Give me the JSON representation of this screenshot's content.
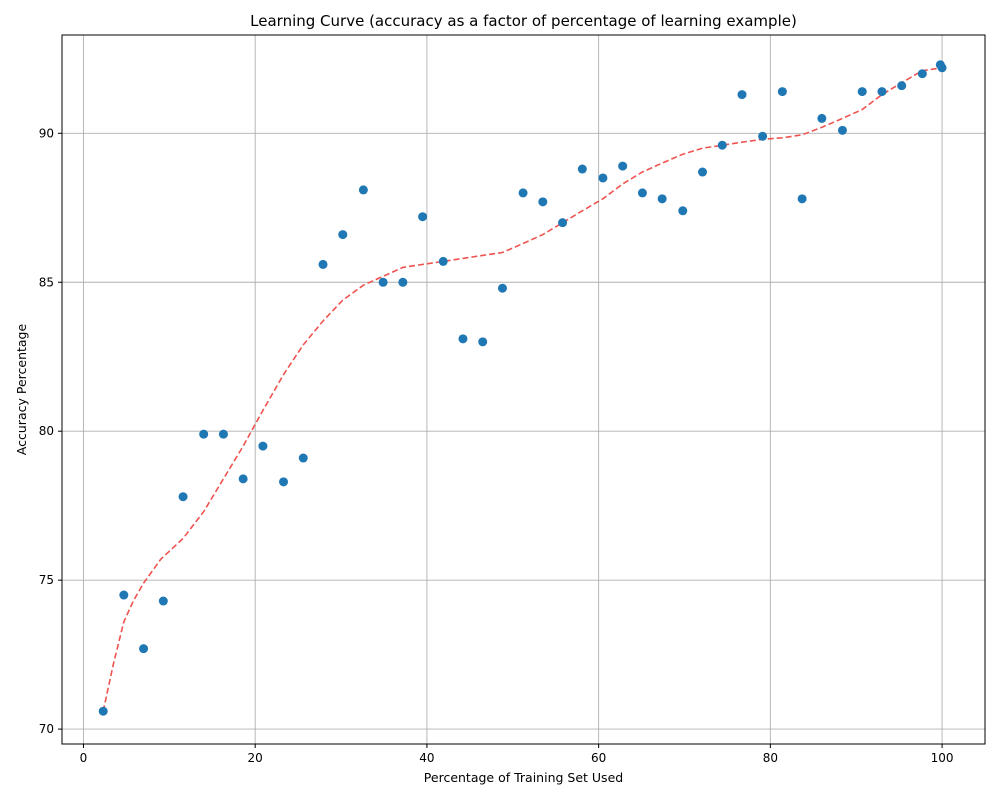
{
  "chart_data": {
    "type": "scatter",
    "title": "Learning Curve (accuracy as a factor of percentage of learning example)",
    "xlabel": "Percentage of Training Set Used",
    "ylabel": "Accuracy Percentage",
    "xlim": [
      -2.5,
      105
    ],
    "ylim": [
      69.5,
      93.3
    ],
    "xticks": [
      0,
      20,
      40,
      60,
      80,
      100
    ],
    "yticks": [
      70,
      75,
      80,
      85,
      90
    ],
    "grid": true,
    "colors": {
      "points": "#1f77b4",
      "trend": "#ef5350"
    },
    "series": [
      {
        "type": "scatter",
        "x": [
          2.3,
          4.7,
          7.0,
          9.3,
          11.6,
          14.0,
          16.3,
          18.6,
          20.9,
          23.3,
          25.6,
          27.9,
          30.2,
          32.6,
          34.9,
          37.2,
          39.5,
          41.9,
          44.2,
          46.5,
          48.8,
          51.2,
          53.5,
          55.8,
          58.1,
          60.5,
          62.8,
          65.1,
          67.4,
          69.8,
          72.1,
          74.4,
          76.7,
          79.1,
          81.4,
          83.7,
          86.0,
          88.4,
          90.7,
          93.0,
          95.3,
          97.7,
          100.0,
          99.8
        ],
        "y": [
          70.6,
          74.5,
          72.7,
          74.3,
          77.8,
          79.9,
          79.9,
          78.4,
          79.5,
          78.3,
          79.1,
          85.6,
          86.6,
          88.1,
          85.0,
          85.0,
          87.2,
          85.7,
          83.1,
          83.0,
          84.8,
          88.0,
          87.7,
          87.0,
          88.8,
          88.5,
          88.9,
          88.0,
          87.8,
          87.4,
          88.7,
          89.6,
          91.3,
          89.9,
          91.4,
          87.8,
          90.5,
          90.1,
          91.4,
          91.4,
          91.6,
          92.0,
          92.2,
          92.3
        ]
      },
      {
        "type": "line",
        "style": "dashed",
        "x": [
          2.3,
          3.5,
          4.7,
          5.8,
          7.0,
          9.0,
          11.6,
          14.0,
          16.3,
          18.6,
          20.9,
          23.3,
          25.6,
          27.9,
          30.2,
          32.6,
          34.9,
          37.2,
          39.5,
          41.9,
          44.2,
          46.5,
          48.8,
          51.2,
          53.5,
          55.8,
          58.1,
          60.5,
          62.8,
          65.1,
          67.4,
          69.8,
          72.1,
          74.4,
          76.7,
          79.1,
          81.4,
          83.7,
          86.0,
          88.4,
          90.7,
          93.0,
          95.3,
          97.7,
          100.0
        ],
        "y": [
          70.6,
          72.2,
          73.6,
          74.3,
          74.9,
          75.7,
          76.4,
          77.3,
          78.4,
          79.5,
          80.7,
          81.9,
          82.9,
          83.7,
          84.4,
          84.9,
          85.2,
          85.5,
          85.6,
          85.7,
          85.8,
          85.9,
          86.0,
          86.3,
          86.6,
          87.0,
          87.4,
          87.8,
          88.3,
          88.7,
          89.0,
          89.3,
          89.5,
          89.6,
          89.7,
          89.8,
          89.85,
          89.95,
          90.2,
          90.5,
          90.8,
          91.3,
          91.7,
          92.1,
          92.2
        ]
      }
    ]
  }
}
